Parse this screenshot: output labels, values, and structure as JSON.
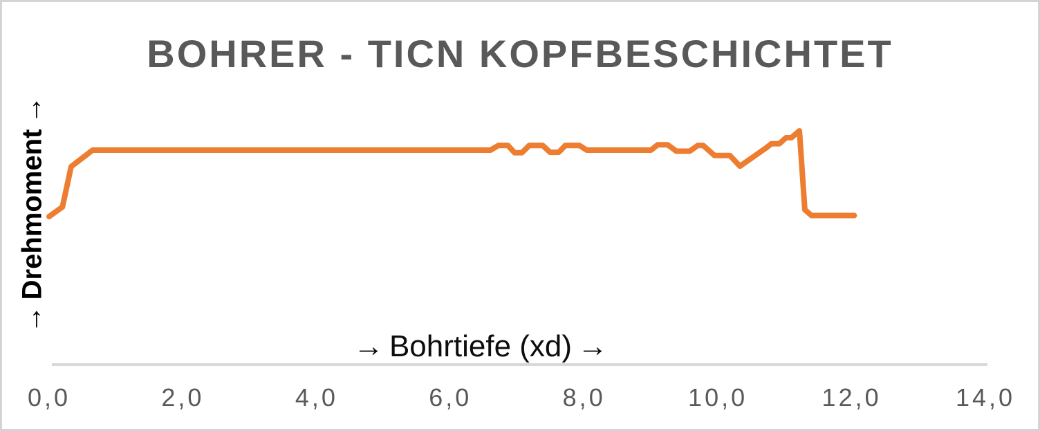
{
  "window": {
    "background": "#ffffff",
    "frame_border_color": "#d4d4d4"
  },
  "chart": {
    "title": "BOHRER - TICN KOPFBESCHICHTET",
    "x_axis": {
      "label": "Bohrtiefe (xd)",
      "arrow": "→"
    },
    "y_axis": {
      "label": "Drehmoment",
      "arrow": "→"
    }
  },
  "chart_data": {
    "type": "line",
    "title": "BOHRER - TICN KOPFBESCHICHTET",
    "xlabel": "→ Bohrtiefe (xd) →",
    "ylabel": "→ Drehmoment →",
    "xlim": [
      0,
      14
    ],
    "x_tick_step": 2,
    "x_ticks": [
      {
        "value": 0,
        "label": "0,0"
      },
      {
        "value": 2,
        "label": "2,0"
      },
      {
        "value": 4,
        "label": "4,0"
      },
      {
        "value": 6,
        "label": "6,0"
      },
      {
        "value": 8,
        "label": "8,0"
      },
      {
        "value": 10,
        "label": "10,0"
      },
      {
        "value": 12,
        "label": "12,0"
      },
      {
        "value": 14,
        "label": "14,0"
      }
    ],
    "y_axis_ticks_shown": false,
    "y_units": "relative Drehmoment (plateau normalized to 1.0, estimated — no y tick labels in chart)",
    "grid": false,
    "legend": false,
    "colors": {
      "line": "#ED7D31",
      "title": "#595959",
      "tick_labels": "#595959",
      "axis_line": "#D9D9D9",
      "axis_titles": "#000000"
    },
    "series": [
      {
        "name": "Drehmoment",
        "color": "#ED7D31",
        "points": [
          [
            0.0,
            0.69
          ],
          [
            0.2,
            0.735
          ],
          [
            0.33,
            0.923
          ],
          [
            0.65,
            1.0
          ],
          [
            6.6,
            1.0
          ],
          [
            6.72,
            1.022
          ],
          [
            6.86,
            1.022
          ],
          [
            6.96,
            0.988
          ],
          [
            7.07,
            0.988
          ],
          [
            7.18,
            1.022
          ],
          [
            7.38,
            1.022
          ],
          [
            7.49,
            0.99
          ],
          [
            7.62,
            0.99
          ],
          [
            7.72,
            1.022
          ],
          [
            7.93,
            1.022
          ],
          [
            8.04,
            1.0
          ],
          [
            9.0,
            1.0
          ],
          [
            9.1,
            1.025
          ],
          [
            9.25,
            1.025
          ],
          [
            9.38,
            0.995
          ],
          [
            9.58,
            0.995
          ],
          [
            9.7,
            1.022
          ],
          [
            9.78,
            1.022
          ],
          [
            9.95,
            0.975
          ],
          [
            10.18,
            0.975
          ],
          [
            10.33,
            0.925
          ],
          [
            10.72,
            1.01
          ],
          [
            10.8,
            1.03
          ],
          [
            10.92,
            1.03
          ],
          [
            11.02,
            1.058
          ],
          [
            11.1,
            1.058
          ],
          [
            11.22,
            1.09
          ],
          [
            11.3,
            0.722
          ],
          [
            11.4,
            0.695
          ],
          [
            12.04,
            0.695
          ]
        ]
      }
    ]
  }
}
